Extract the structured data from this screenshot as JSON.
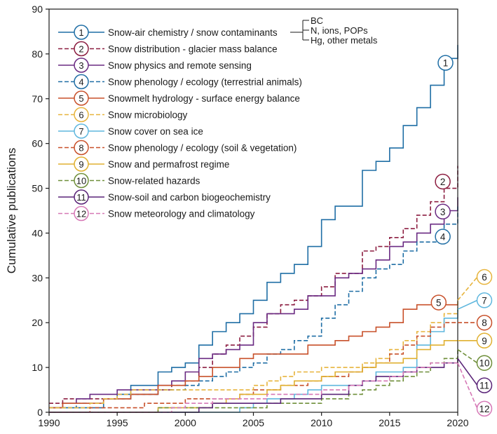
{
  "chart_data": {
    "type": "line",
    "title": "",
    "xlabel": "",
    "ylabel": "Cumulative publications",
    "xlim": [
      1990,
      2020
    ],
    "ylim": [
      0,
      90
    ],
    "xticks": [
      1990,
      1995,
      2000,
      2005,
      2010,
      2015,
      2020
    ],
    "yticks": [
      0,
      10,
      20,
      30,
      40,
      50,
      60,
      70,
      80,
      90
    ],
    "grid": false,
    "legend_position": "top-left",
    "series": [
      {
        "id": "1",
        "name": "Snow-air chemistry / snow contaminants",
        "color": "#1f6ea5",
        "dash": "solid",
        "x": [
          1990,
          1991,
          1992,
          1993,
          1994,
          1995,
          1996,
          1997,
          1998,
          1999,
          2000,
          2001,
          2002,
          2003,
          2004,
          2005,
          2006,
          2007,
          2008,
          2009,
          2010,
          2011,
          2012,
          2013,
          2014,
          2015,
          2016,
          2017,
          2018,
          2019,
          2020
        ],
        "y": [
          1,
          1,
          1,
          1,
          3,
          4,
          6,
          6,
          9,
          10,
          11,
          15,
          18,
          20,
          22,
          25,
          29,
          31,
          33,
          37,
          43,
          46,
          46,
          54,
          56,
          59,
          64,
          68,
          73,
          79,
          82
        ]
      },
      {
        "id": "2",
        "name": "Snow distribution - glacier mass balance",
        "color": "#8c1d40",
        "dash": "dashed",
        "x": [
          1990,
          1991,
          1992,
          1993,
          1994,
          1995,
          1996,
          1997,
          1998,
          1999,
          2000,
          2001,
          2002,
          2003,
          2004,
          2005,
          2006,
          2007,
          2008,
          2009,
          2010,
          2011,
          2012,
          2013,
          2014,
          2015,
          2016,
          2017,
          2018,
          2019,
          2020
        ],
        "y": [
          2,
          3,
          3,
          3,
          3,
          3,
          4,
          4,
          5,
          6,
          7,
          10,
          13,
          15,
          17,
          19,
          22,
          24,
          25,
          26,
          28,
          31,
          31,
          36,
          37,
          39,
          41,
          44,
          47,
          50,
          55
        ]
      },
      {
        "id": "3",
        "name": "Snow physics and remote sensing",
        "color": "#6a2a82",
        "dash": "solid",
        "x": [
          1990,
          1991,
          1992,
          1993,
          1994,
          1995,
          1996,
          1997,
          1998,
          1999,
          2000,
          2001,
          2002,
          2003,
          2004,
          2005,
          2006,
          2007,
          2008,
          2009,
          2010,
          2011,
          2012,
          2013,
          2014,
          2015,
          2016,
          2017,
          2018,
          2019,
          2020
        ],
        "y": [
          1,
          2,
          3,
          4,
          4,
          5,
          5,
          5,
          6,
          7,
          9,
          12,
          13,
          14,
          15,
          20,
          22,
          22,
          23,
          26,
          26,
          30,
          31,
          32,
          34,
          37,
          38,
          40,
          42,
          45,
          48
        ]
      },
      {
        "id": "4",
        "name": "Snow phenology / ecology (terrestrial animals)",
        "color": "#1f6ea5",
        "dash": "dashed",
        "x": [
          1990,
          1991,
          1992,
          1993,
          1994,
          1995,
          1996,
          1997,
          1998,
          1999,
          2000,
          2001,
          2002,
          2003,
          2004,
          2005,
          2006,
          2007,
          2008,
          2009,
          2010,
          2011,
          2012,
          2013,
          2014,
          2015,
          2016,
          2017,
          2018,
          2019,
          2020
        ],
        "y": [
          1,
          1,
          2,
          2,
          3,
          3,
          4,
          4,
          5,
          5,
          6,
          7,
          8,
          9,
          10,
          11,
          13,
          14,
          16,
          17,
          21,
          24,
          27,
          30,
          32,
          33,
          36,
          38,
          38,
          42,
          46
        ]
      },
      {
        "id": "5",
        "name": "Snowmelt hydrology - surface energy balance",
        "color": "#c8502a",
        "dash": "solid",
        "x": [
          1990,
          1991,
          1992,
          1993,
          1994,
          1995,
          1996,
          1997,
          1998,
          1999,
          2000,
          2001,
          2002,
          2003,
          2004,
          2005,
          2006,
          2007,
          2008,
          2009,
          2010,
          2011,
          2012,
          2013,
          2014,
          2015,
          2016,
          2017,
          2018,
          2019,
          2020
        ],
        "y": [
          1,
          2,
          2,
          2,
          3,
          3,
          4,
          4,
          6,
          6,
          7,
          8,
          10,
          10,
          12,
          13,
          13,
          13,
          13,
          15,
          15,
          16,
          17,
          18,
          19,
          20,
          23,
          24,
          24,
          24,
          24
        ]
      },
      {
        "id": "6",
        "name": "Snow microbiology",
        "color": "#e7b43c",
        "dash": "dashed",
        "x": [
          1990,
          1991,
          1992,
          1993,
          1994,
          1995,
          1996,
          1997,
          1998,
          1999,
          2000,
          2001,
          2002,
          2003,
          2004,
          2005,
          2006,
          2007,
          2008,
          2009,
          2010,
          2011,
          2012,
          2013,
          2014,
          2015,
          2016,
          2017,
          2018,
          2019,
          2020
        ],
        "y": [
          1,
          1,
          1,
          2,
          3,
          4,
          5,
          5,
          5,
          5,
          5,
          5,
          5,
          5,
          5,
          6,
          7,
          8,
          9,
          9,
          10,
          10,
          10,
          11,
          12,
          14,
          16,
          18,
          20,
          22,
          25
        ]
      },
      {
        "id": "7",
        "name": "Snow cover on sea ice",
        "color": "#5fb7de",
        "dash": "solid",
        "x": [
          1990,
          1991,
          1992,
          1993,
          1994,
          1995,
          1996,
          1997,
          1998,
          1999,
          2000,
          2001,
          2002,
          2003,
          2004,
          2005,
          2006,
          2007,
          2008,
          2009,
          2010,
          2011,
          2012,
          2013,
          2014,
          2015,
          2016,
          2017,
          2018,
          2019,
          2020
        ],
        "y": [
          0,
          0,
          0,
          0,
          0,
          0,
          0,
          0,
          0,
          0,
          0,
          0,
          0,
          0,
          1,
          2,
          3,
          3,
          4,
          5,
          6,
          6,
          6,
          7,
          9,
          9,
          10,
          15,
          18,
          21,
          23
        ]
      },
      {
        "id": "8",
        "name": "Snow phenology / ecology (soil & vegetation)",
        "color": "#c8502a",
        "dash": "dashed",
        "x": [
          1990,
          1991,
          1992,
          1993,
          1994,
          1995,
          1996,
          1997,
          1998,
          1999,
          2000,
          2001,
          2002,
          2003,
          2004,
          2005,
          2006,
          2007,
          2008,
          2009,
          2010,
          2011,
          2012,
          2013,
          2014,
          2015,
          2016,
          2017,
          2018,
          2019,
          2020
        ],
        "y": [
          0,
          0,
          0,
          1,
          1,
          1,
          1,
          2,
          2,
          2,
          3,
          3,
          3,
          3,
          4,
          5,
          5,
          6,
          6,
          7,
          8,
          8,
          9,
          10,
          11,
          13,
          15,
          17,
          19,
          20,
          20
        ]
      },
      {
        "id": "9",
        "name": "Snow and permafrost regime",
        "color": "#e0b030",
        "dash": "solid",
        "x": [
          1990,
          1991,
          1992,
          1993,
          1994,
          1995,
          1996,
          1997,
          1998,
          1999,
          2000,
          2001,
          2002,
          2003,
          2004,
          2005,
          2006,
          2007,
          2008,
          2009,
          2010,
          2011,
          2012,
          2013,
          2014,
          2015,
          2016,
          2017,
          2018,
          2019,
          2020
        ],
        "y": [
          0,
          0,
          0,
          0,
          0,
          0,
          0,
          0,
          1,
          1,
          1,
          1,
          2,
          3,
          4,
          4,
          5,
          6,
          7,
          7,
          8,
          9,
          9,
          10,
          11,
          11,
          12,
          14,
          15,
          16,
          16
        ]
      },
      {
        "id": "10",
        "name": "Snow-related hazards",
        "color": "#6f8f3a",
        "dash": "dashed",
        "x": [
          1990,
          1991,
          1992,
          1993,
          1994,
          1995,
          1996,
          1997,
          1998,
          1999,
          2000,
          2001,
          2002,
          2003,
          2004,
          2005,
          2006,
          2007,
          2008,
          2009,
          2010,
          2011,
          2012,
          2013,
          2014,
          2015,
          2016,
          2017,
          2018,
          2019,
          2020
        ],
        "y": [
          0,
          0,
          0,
          0,
          0,
          0,
          0,
          0,
          1,
          1,
          1,
          1,
          1,
          1,
          1,
          1,
          2,
          2,
          2,
          2,
          3,
          3,
          4,
          5,
          6,
          7,
          8,
          9,
          11,
          12,
          14
        ]
      },
      {
        "id": "11",
        "name": "Snow-soil and carbon biogeochemistry",
        "color": "#5a2478",
        "dash": "solid",
        "x": [
          1990,
          1991,
          1992,
          1993,
          1994,
          1995,
          1996,
          1997,
          1998,
          1999,
          2000,
          2001,
          2002,
          2003,
          2004,
          2005,
          2006,
          2007,
          2008,
          2009,
          2010,
          2011,
          2012,
          2013,
          2014,
          2015,
          2016,
          2017,
          2018,
          2019,
          2020
        ],
        "y": [
          0,
          0,
          0,
          0,
          0,
          0,
          0,
          0,
          0,
          0,
          0,
          1,
          2,
          2,
          2,
          2,
          2,
          3,
          3,
          3,
          4,
          4,
          6,
          7,
          8,
          8,
          9,
          10,
          10,
          11,
          12
        ]
      },
      {
        "id": "12",
        "name": "Snow meteorology and climatology",
        "color": "#d678b6",
        "dash": "dashed",
        "x": [
          1990,
          1991,
          1992,
          1993,
          1994,
          1995,
          1996,
          1997,
          1998,
          1999,
          2000,
          2001,
          2002,
          2003,
          2004,
          2005,
          2006,
          2007,
          2008,
          2009,
          2010,
          2011,
          2012,
          2013,
          2014,
          2015,
          2016,
          2017,
          2018,
          2019,
          2020
        ],
        "y": [
          0,
          0,
          0,
          0,
          0,
          0,
          0,
          0,
          0,
          1,
          2,
          2,
          3,
          3,
          3,
          3,
          4,
          4,
          4,
          4,
          5,
          5,
          6,
          7,
          7,
          8,
          9,
          10,
          11,
          11,
          11
        ]
      }
    ],
    "annotations": {
      "bracket_labels": [
        "BC",
        "N, ions, POPs",
        "Hg, other metals"
      ]
    }
  }
}
